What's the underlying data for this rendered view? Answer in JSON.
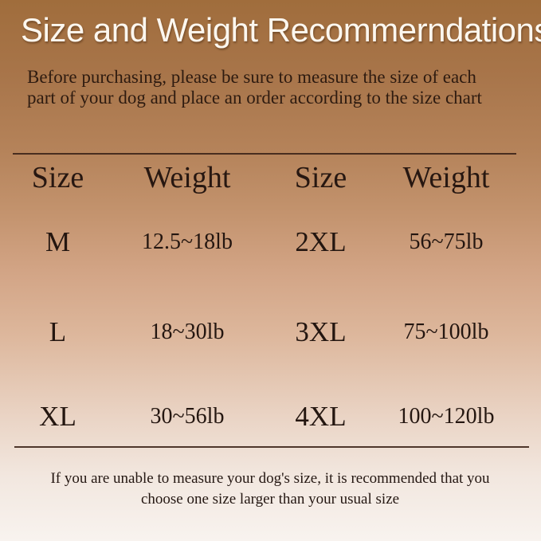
{
  "header": {
    "title": "Size and Weight Recommerndations",
    "intro": "Before purchasing, please be sure to measure the size of each part of your dog and place an order according to the size chart"
  },
  "chart_data": {
    "type": "table",
    "title": "Size and Weight Recommerndations",
    "columns": [
      "Size",
      "Weight",
      "Size",
      "Weight"
    ],
    "rows": [
      [
        "M",
        "12.5~18lb",
        "2XL",
        "56~75lb"
      ],
      [
        "L",
        "18~30lb",
        "3XL",
        "75~100lb"
      ],
      [
        "XL",
        "30~56lb",
        "4XL",
        "100~120lb"
      ]
    ],
    "size_to_weight": {
      "M": "12.5~18lb",
      "L": "18~30lb",
      "XL": "30~56lb",
      "2XL": "56~75lb",
      "3XL": "75~100lb",
      "4XL": "100~120lb"
    }
  },
  "footer": {
    "note": "If you are unable to measure your dog's size, it is recommended that you choose one size larger than your usual size"
  },
  "colors": {
    "background_top": "#a06d3c",
    "background_bottom": "#f8f3ef",
    "title_text": "#fcf7ef",
    "body_text": "#241610",
    "divider": "#3c2418"
  }
}
